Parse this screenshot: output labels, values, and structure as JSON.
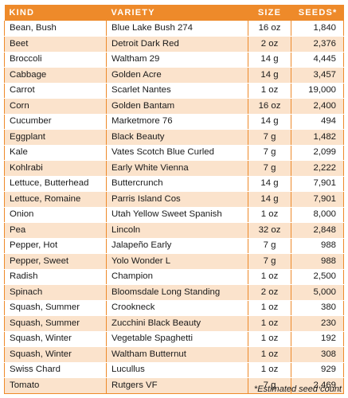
{
  "headers": {
    "kind": "KIND",
    "variety": "VARIETY",
    "size": "SIZE",
    "seeds": "SEEDS*"
  },
  "rows": [
    {
      "kind": "Bean, Bush",
      "variety": "Blue Lake Bush 274",
      "size": "16 oz",
      "seeds": "1,840"
    },
    {
      "kind": "Beet",
      "variety": "Detroit Dark Red",
      "size": "2 oz",
      "seeds": "2,376"
    },
    {
      "kind": "Broccoli",
      "variety": "Waltham 29",
      "size": "14 g",
      "seeds": "4,445"
    },
    {
      "kind": "Cabbage",
      "variety": "Golden Acre",
      "size": "14 g",
      "seeds": "3,457"
    },
    {
      "kind": "Carrot",
      "variety": "Scarlet Nantes",
      "size": "1 oz",
      "seeds": "19,000"
    },
    {
      "kind": "Corn",
      "variety": "Golden Bantam",
      "size": "16 oz",
      "seeds": "2,400"
    },
    {
      "kind": "Cucumber",
      "variety": "Marketmore 76",
      "size": "14 g",
      "seeds": "494"
    },
    {
      "kind": "Eggplant",
      "variety": "Black Beauty",
      "size": "7 g",
      "seeds": "1,482"
    },
    {
      "kind": "Kale",
      "variety": "Vates Scotch Blue Curled",
      "size": "7 g",
      "seeds": "2,099"
    },
    {
      "kind": "Kohlrabi",
      "variety": "Early White Vienna",
      "size": "7 g",
      "seeds": "2,222"
    },
    {
      "kind": "Lettuce, Butterhead",
      "variety": "Buttercrunch",
      "size": "14 g",
      "seeds": "7,901"
    },
    {
      "kind": "Lettuce, Romaine",
      "variety": "Parris Island Cos",
      "size": "14 g",
      "seeds": "7,901"
    },
    {
      "kind": "Onion",
      "variety": "Utah Yellow Sweet Spanish",
      "size": "1 oz",
      "seeds": "8,000"
    },
    {
      "kind": "Pea",
      "variety": "Lincoln",
      "size": "32 oz",
      "seeds": "2,848"
    },
    {
      "kind": "Pepper, Hot",
      "variety": "Jalapeño Early",
      "size": "7 g",
      "seeds": "988"
    },
    {
      "kind": "Pepper, Sweet",
      "variety": "Yolo Wonder L",
      "size": "7 g",
      "seeds": "988"
    },
    {
      "kind": "Radish",
      "variety": "Champion",
      "size": "1 oz",
      "seeds": "2,500"
    },
    {
      "kind": "Spinach",
      "variety": "Bloomsdale Long Standing",
      "size": "2 oz",
      "seeds": "5,000"
    },
    {
      "kind": "Squash, Summer",
      "variety": "Crookneck",
      "size": "1 oz",
      "seeds": "380"
    },
    {
      "kind": "Squash, Summer",
      "variety": "Zucchini Black Beauty",
      "size": "1 oz",
      "seeds": "230"
    },
    {
      "kind": "Squash, Winter",
      "variety": "Vegetable Spaghetti",
      "size": "1 oz",
      "seeds": "192"
    },
    {
      "kind": "Squash, Winter",
      "variety": "Waltham Butternut",
      "size": "1 oz",
      "seeds": "308"
    },
    {
      "kind": "Swiss Chard",
      "variety": "Lucullus",
      "size": "1 oz",
      "seeds": "929"
    },
    {
      "kind": "Tomato",
      "variety": "Rutgers VF",
      "size": "7 g",
      "seeds": "2,469"
    }
  ],
  "footnote": "*Estimated seed count",
  "colors": {
    "header_bg": "#ee8a2a",
    "stripe_bg": "#fbe3cc",
    "border": "#ee8a2a"
  }
}
